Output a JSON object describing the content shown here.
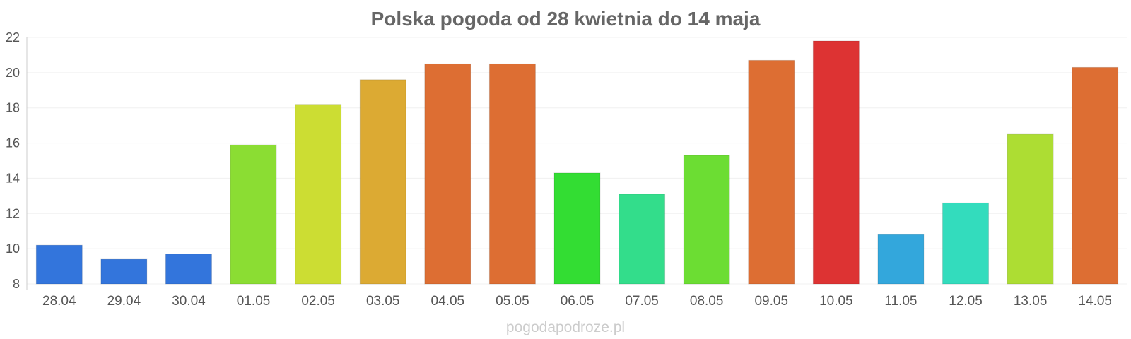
{
  "chart_data": {
    "type": "bar",
    "title": "Polska pogoda od 28 kwietnia do 14 maja",
    "xlabel": "",
    "ylabel": "",
    "ylim": [
      8,
      22
    ],
    "yticks": [
      "8",
      "10",
      "12",
      "14",
      "16",
      "18",
      "20",
      "22"
    ],
    "grid": true,
    "legend": "none",
    "categories": [
      "28.04",
      "29.04",
      "30.04",
      "01.05",
      "02.05",
      "03.05",
      "04.05",
      "05.05",
      "06.05",
      "07.05",
      "08.05",
      "09.05",
      "10.05",
      "11.05",
      "12.05",
      "13.05",
      "14.05"
    ],
    "values": [
      10.2,
      9.4,
      9.7,
      15.9,
      18.2,
      19.6,
      20.5,
      20.5,
      14.3,
      13.1,
      15.3,
      20.7,
      21.8,
      10.8,
      12.6,
      16.5,
      20.3
    ],
    "colors": [
      "#3375dc",
      "#3375dc",
      "#3375dc",
      "#8bdd33",
      "#ccdd33",
      "#dcaa33",
      "#dd6e33",
      "#dd6e33",
      "#33dd33",
      "#33dd8b",
      "#6cdd33",
      "#dd6e33",
      "#dd3333",
      "#33a7dc",
      "#33dcbd",
      "#addd33",
      "#dd6e33"
    ]
  },
  "watermark": "pogodapodroze.pl"
}
